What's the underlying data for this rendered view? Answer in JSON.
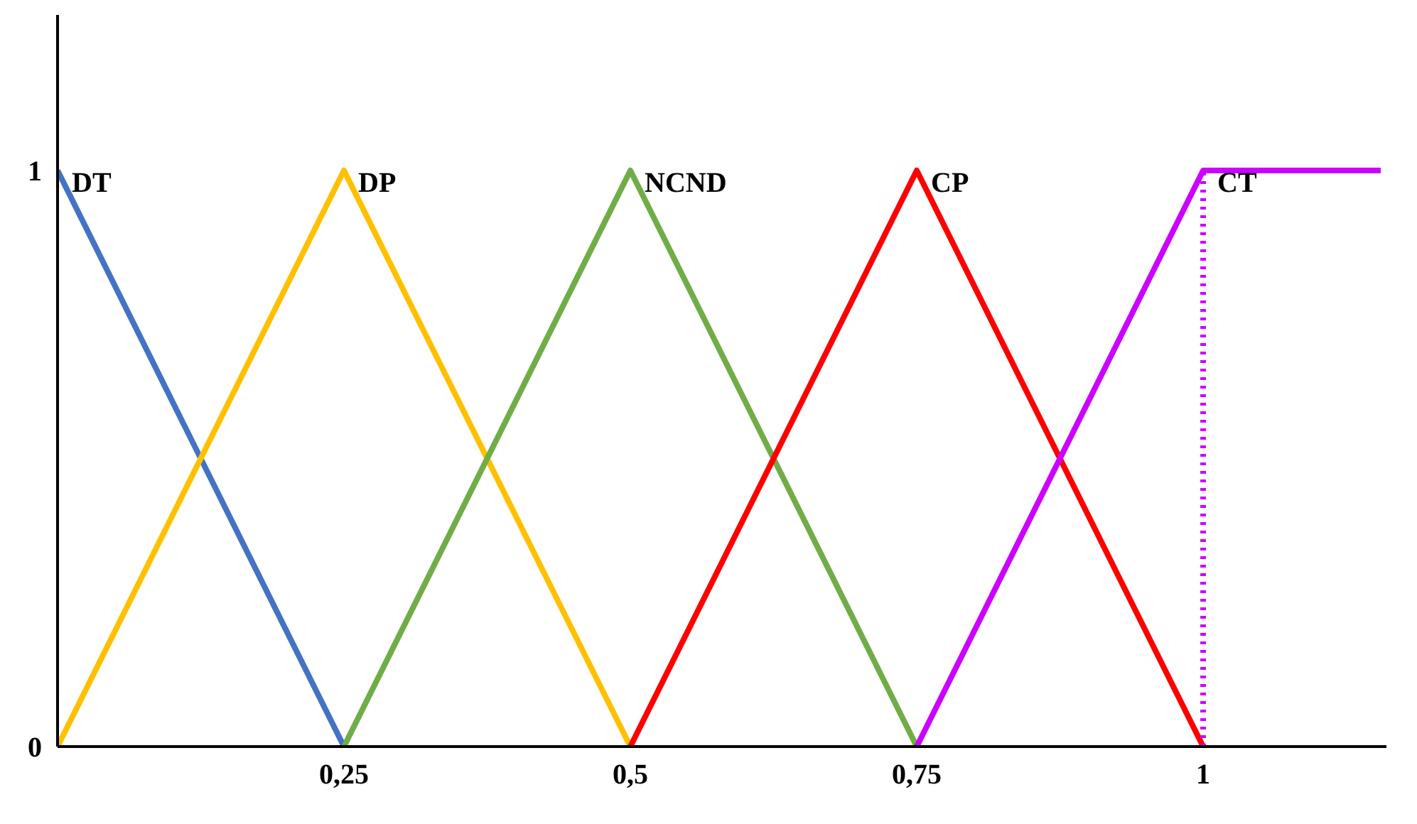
{
  "chart_data": {
    "type": "line",
    "xlim": [
      0,
      1.16
    ],
    "ylim": [
      0,
      1.27
    ],
    "xticks": [
      {
        "value": 0,
        "label": null
      },
      {
        "value": 0.25,
        "label": "0,25"
      },
      {
        "value": 0.5,
        "label": "0,5"
      },
      {
        "value": 0.75,
        "label": "0,75"
      },
      1
    ],
    "yticks": [
      0,
      1
    ],
    "grid": false,
    "marker": "none",
    "series": [
      {
        "name": "DT",
        "color": "#4472c4",
        "x": [
          0,
          0.25
        ],
        "values": [
          1,
          0
        ]
      },
      {
        "name": "DP",
        "color": "#ffc000",
        "x": [
          0,
          0.25,
          0.5
        ],
        "values": [
          0,
          1,
          0
        ]
      },
      {
        "name": "NCND",
        "color": "#70ad47",
        "x": [
          0.25,
          0.5,
          0.75
        ],
        "values": [
          0,
          1,
          0
        ]
      },
      {
        "name": "CP",
        "color": "#ff0000",
        "x": [
          0.5,
          0.75,
          1
        ],
        "values": [
          0,
          1,
          0
        ]
      },
      {
        "name": "CT",
        "color": "#cc00ff",
        "x": [
          0.75,
          1,
          1.155
        ],
        "values": [
          0,
          1,
          1
        ]
      },
      {
        "color": "#cc00ff",
        "x": [
          1,
          1
        ],
        "values": [
          0,
          1
        ],
        "line_style": "dotted"
      }
    ]
  }
}
